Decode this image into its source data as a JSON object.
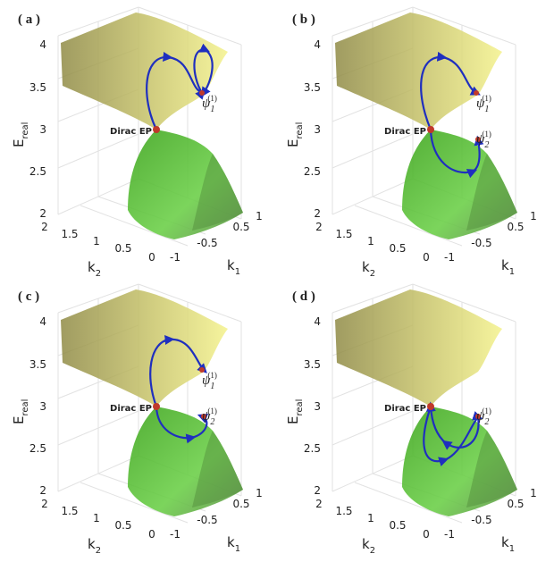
{
  "panels": [
    {
      "label": "( a )",
      "annotation": "Dirac EP",
      "psi": [
        {
          "main": "ψ",
          "sub": "1",
          "sup": "(1)"
        }
      ]
    },
    {
      "label": "( b )",
      "annotation": "Dirac EP",
      "psi": [
        {
          "main": "ψ",
          "sub": "1",
          "sup": "(1)"
        },
        {
          "main": "ψ",
          "sub": "2",
          "sup": "(1)"
        }
      ]
    },
    {
      "label": "( c )",
      "annotation": "Dirac EP",
      "psi": [
        {
          "main": "ψ",
          "sub": "1",
          "sup": "(1)"
        },
        {
          "main": "ψ",
          "sub": "2",
          "sup": "(1)"
        }
      ]
    },
    {
      "label": "( d )",
      "annotation": "Dirac EP",
      "psi": [
        {
          "main": "ψ",
          "sub": "2",
          "sup": "(1)"
        }
      ]
    }
  ],
  "axes": {
    "z_title": {
      "main": "E",
      "sub": "real"
    },
    "z_ticks": [
      "4",
      "3.5",
      "3",
      "2.5",
      "2"
    ],
    "k2_title": {
      "main": "k",
      "sub": "2"
    },
    "k2_ticks": [
      "2",
      "1.5",
      "1",
      "0.5",
      "0"
    ],
    "k1_title": {
      "main": "k",
      "sub": "1"
    },
    "k1_ticks": [
      "-1",
      "-0.5",
      "0.5",
      "1"
    ]
  }
}
